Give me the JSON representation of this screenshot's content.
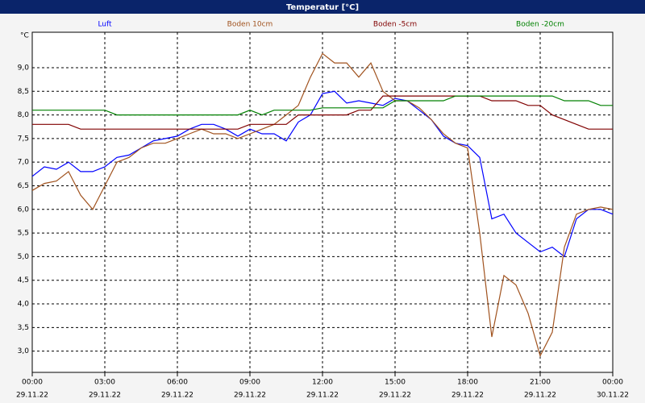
{
  "chart_data": {
    "type": "line",
    "title": "Temperatur [°C]",
    "ylabel": "°C",
    "x": [
      0,
      0.5,
      1,
      1.5,
      2,
      2.5,
      3,
      3.5,
      4,
      4.5,
      5,
      5.5,
      6,
      6.5,
      7,
      7.5,
      8,
      8.5,
      9,
      9.5,
      10,
      10.5,
      11,
      11.5,
      12,
      12.5,
      13,
      13.5,
      14,
      14.5,
      15,
      15.5,
      16,
      16.5,
      17,
      17.5,
      18,
      18.5,
      19,
      19.5,
      20,
      20.5,
      21,
      21.5,
      22,
      22.5,
      23,
      23.5,
      24
    ],
    "series": [
      {
        "name": "Luft",
        "color": "#0000ff",
        "values": [
          6.7,
          6.9,
          6.85,
          7.0,
          6.8,
          6.8,
          6.9,
          7.1,
          7.15,
          7.3,
          7.45,
          7.5,
          7.55,
          7.7,
          7.8,
          7.8,
          7.7,
          7.55,
          7.7,
          7.6,
          7.6,
          7.45,
          7.85,
          8.0,
          8.45,
          8.5,
          8.25,
          8.3,
          8.25,
          8.2,
          8.35,
          8.3,
          8.1,
          7.9,
          7.55,
          7.4,
          7.35,
          7.1,
          5.8,
          5.9,
          5.5,
          5.3,
          5.1,
          5.2,
          5.0,
          5.8,
          6.0,
          6.0,
          5.9
        ]
      },
      {
        "name": "Boden 10cm",
        "color": "#a0521e",
        "values": [
          6.4,
          6.55,
          6.6,
          6.8,
          6.3,
          6.0,
          6.5,
          7.0,
          7.1,
          7.3,
          7.4,
          7.4,
          7.5,
          7.6,
          7.7,
          7.6,
          7.6,
          7.5,
          7.6,
          7.7,
          7.8,
          8.0,
          8.2,
          8.8,
          9.3,
          9.1,
          9.1,
          8.8,
          9.1,
          8.5,
          8.3,
          8.3,
          8.15,
          7.9,
          7.6,
          7.4,
          7.3,
          5.5,
          3.3,
          4.6,
          4.4,
          3.8,
          2.9,
          3.4,
          5.2,
          5.9,
          6.0,
          6.05,
          6.0
        ]
      },
      {
        "name": "Boden -5cm",
        "color": "#800000",
        "values": [
          7.8,
          7.8,
          7.8,
          7.8,
          7.7,
          7.7,
          7.7,
          7.7,
          7.7,
          7.7,
          7.7,
          7.7,
          7.7,
          7.7,
          7.7,
          7.7,
          7.7,
          7.7,
          7.8,
          7.8,
          7.8,
          7.8,
          8.0,
          8.0,
          8.0,
          8.0,
          8.0,
          8.1,
          8.1,
          8.4,
          8.4,
          8.4,
          8.4,
          8.4,
          8.4,
          8.4,
          8.4,
          8.4,
          8.3,
          8.3,
          8.3,
          8.2,
          8.2,
          8.0,
          7.9,
          7.8,
          7.7,
          7.7,
          7.7
        ]
      },
      {
        "name": "Boden -20cm",
        "color": "#008000",
        "values": [
          8.1,
          8.1,
          8.1,
          8.1,
          8.1,
          8.1,
          8.1,
          8.0,
          8.0,
          8.0,
          8.0,
          8.0,
          8.0,
          8.0,
          8.0,
          8.0,
          8.0,
          8.0,
          8.1,
          8.0,
          8.1,
          8.1,
          8.1,
          8.1,
          8.15,
          8.15,
          8.15,
          8.15,
          8.15,
          8.15,
          8.3,
          8.3,
          8.3,
          8.3,
          8.3,
          8.4,
          8.4,
          8.4,
          8.4,
          8.4,
          8.4,
          8.4,
          8.4,
          8.4,
          8.3,
          8.3,
          8.3,
          8.2,
          8.2
        ]
      }
    ],
    "xlim": [
      0,
      24
    ],
    "xticks": [
      {
        "value": 0,
        "label": "00:00"
      },
      {
        "value": 3,
        "label": "03:00"
      },
      {
        "value": 6,
        "label": "06:00"
      },
      {
        "value": 9,
        "label": "09:00"
      },
      {
        "value": 12,
        "label": "12:00"
      },
      {
        "value": 15,
        "label": "15:00"
      },
      {
        "value": 18,
        "label": "18:00"
      },
      {
        "value": 21,
        "label": "21:00"
      },
      {
        "value": 24,
        "label": "00:00"
      }
    ],
    "xtick_dates": [
      "29.11.22",
      "29.11.22",
      "29.11.22",
      "29.11.22",
      "29.11.22",
      "29.11.22",
      "29.11.22",
      "29.11.22",
      "30.11.22"
    ],
    "ylim": [
      2.55,
      9.75
    ],
    "yticks": [
      {
        "value": 3,
        "label": "3,0"
      },
      {
        "value": 3.5,
        "label": "3,5"
      },
      {
        "value": 4,
        "label": "4,0"
      },
      {
        "value": 4.5,
        "label": "4,5"
      },
      {
        "value": 5,
        "label": "5,0"
      },
      {
        "value": 5.5,
        "label": "5,5"
      },
      {
        "value": 6,
        "label": "6,0"
      },
      {
        "value": 6.5,
        "label": "6,5"
      },
      {
        "value": 7,
        "label": "7,0"
      },
      {
        "value": 7.5,
        "label": "7,5"
      },
      {
        "value": 8,
        "label": "8,0"
      },
      {
        "value": 8.5,
        "label": "8,5"
      },
      {
        "value": 9,
        "label": "9,0"
      }
    ],
    "grid": true
  }
}
